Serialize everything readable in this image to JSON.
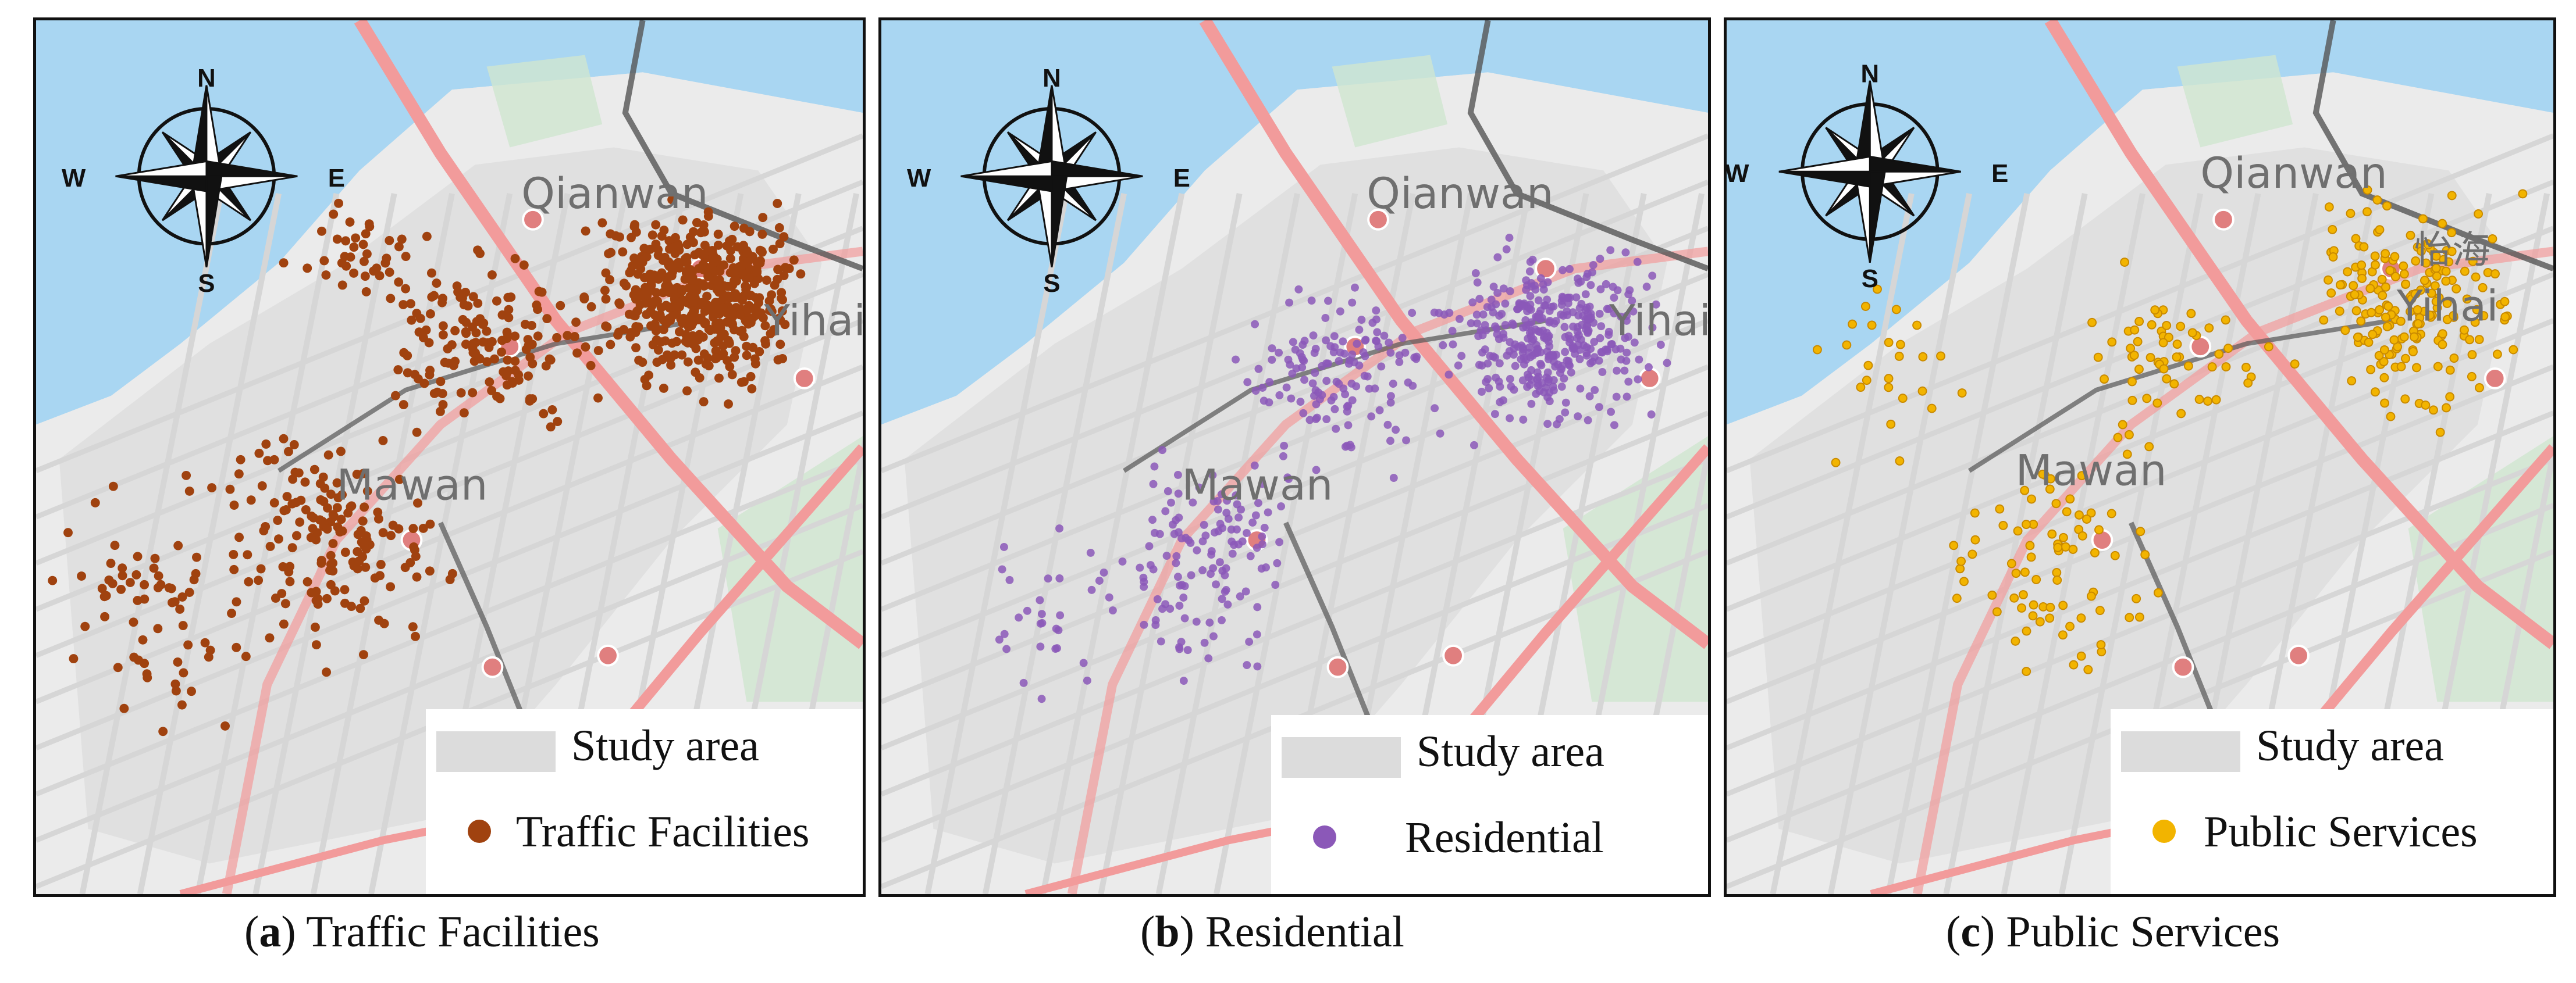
{
  "panels": [
    {
      "id": "a",
      "letter": "a",
      "caption_text": " Traffic Facilities",
      "legend": {
        "area_label": "Study area",
        "poi_label": "Traffic Facilities",
        "poi_color": "#a0420f"
      },
      "places": [
        "Qianwan",
        "Yihai",
        "Mawan"
      ]
    },
    {
      "id": "b",
      "letter": "b",
      "caption_text": " Residential",
      "legend": {
        "area_label": "Study area",
        "poi_label": "Residential",
        "poi_color": "#8b58b8"
      },
      "places": [
        "Qianwan",
        "Yihai",
        "Mawan"
      ]
    },
    {
      "id": "c",
      "letter": "c",
      "caption_text": " Public Services",
      "legend": {
        "area_label": "Study area",
        "poi_label": "Public Services",
        "poi_color": "#f2b400"
      },
      "places": [
        "Qianwan",
        "Yihai",
        "Mawan",
        "怡海"
      ]
    }
  ],
  "compass": {
    "n": "N",
    "s": "S",
    "e": "E",
    "w": "W"
  },
  "colors": {
    "water": "#a9d6f2",
    "land": "#ebebeb",
    "study_area": "#dedede",
    "road_major": "#f29b9b",
    "road_dark": "#555555",
    "park": "#cfe6cf",
    "station": "#e07f7f"
  }
}
